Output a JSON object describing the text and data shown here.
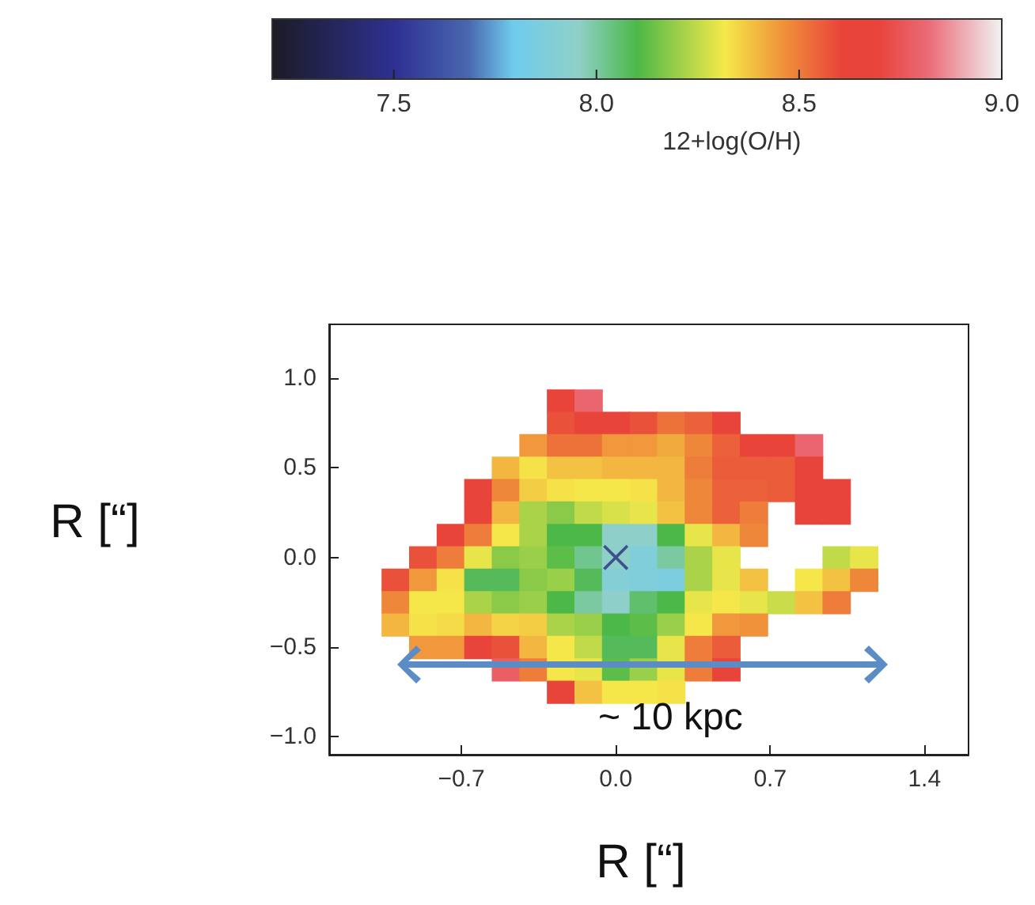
{
  "chart_data": {
    "type": "heatmap",
    "xlabel": "R [“]",
    "ylabel": "R [“]",
    "clabel": "12+log(O/H)",
    "clim": [
      7.2,
      9.0
    ],
    "cticks": [
      7.5,
      {
        "value": 8,
        "label": "8.0"
      },
      8.5,
      {
        "value": 9,
        "label": "9.0"
      }
    ],
    "xlim": [
      -1.3,
      1.6
    ],
    "ylim": [
      -1.1,
      1.3
    ],
    "xticks": [
      {
        "value": -0.7,
        "label": "−0.7"
      },
      {
        "value": 0,
        "label": "0.0"
      },
      0.7,
      1.4
    ],
    "yticks": [
      {
        "value": -1,
        "label": "−1.0"
      },
      {
        "value": -0.5,
        "label": "−0.5"
      },
      {
        "value": 0,
        "label": "0.0"
      },
      0.5,
      {
        "value": 1,
        "label": "1.0"
      }
    ],
    "x": [
      -1.0,
      -0.875,
      -0.75,
      -0.625,
      -0.5,
      -0.375,
      -0.25,
      -0.125,
      0.0,
      0.125,
      0.25,
      0.375,
      0.5,
      0.625,
      0.75,
      0.875,
      1.0,
      1.125
    ],
    "y": [
      0.875,
      0.75,
      0.625,
      0.5,
      0.375,
      0.25,
      0.125,
      0.0,
      -0.125,
      -0.25,
      -0.375,
      -0.5,
      -0.625,
      -0.75
    ],
    "cells": [
      [
        null,
        null,
        null,
        null,
        null,
        null,
        8.65,
        8.8,
        null,
        null,
        null,
        null,
        null,
        null,
        null,
        null,
        null,
        null
      ],
      [
        null,
        null,
        null,
        null,
        null,
        null,
        8.58,
        8.65,
        8.65,
        8.58,
        8.52,
        8.55,
        8.65,
        null,
        null,
        null,
        null,
        null
      ],
      [
        null,
        null,
        null,
        null,
        null,
        8.45,
        8.52,
        8.52,
        8.45,
        8.45,
        8.42,
        8.48,
        8.55,
        8.65,
        8.65,
        8.8,
        null,
        null
      ],
      [
        null,
        null,
        null,
        null,
        8.4,
        8.33,
        8.38,
        8.38,
        8.4,
        8.4,
        8.4,
        8.5,
        8.56,
        8.56,
        8.56,
        8.62,
        null,
        null
      ],
      [
        null,
        null,
        null,
        8.65,
        8.48,
        8.36,
        8.33,
        8.32,
        8.32,
        8.33,
        8.4,
        8.48,
        8.55,
        8.55,
        8.56,
        8.62,
        8.65,
        null
      ],
      [
        null,
        null,
        null,
        8.65,
        8.4,
        8.22,
        8.18,
        8.25,
        8.28,
        8.3,
        8.38,
        8.48,
        8.55,
        8.5,
        null,
        8.65,
        8.65,
        null
      ],
      [
        null,
        null,
        8.65,
        8.5,
        8.32,
        8.22,
        8.1,
        8.1,
        7.95,
        7.95,
        8.1,
        8.3,
        8.4,
        8.48,
        null,
        null,
        null,
        null
      ],
      [
        null,
        8.58,
        8.5,
        8.3,
        8.18,
        8.2,
        8.12,
        8.02,
        7.95,
        7.88,
        8.0,
        8.22,
        8.3,
        null,
        null,
        null,
        8.25,
        8.3
      ],
      [
        8.58,
        8.45,
        8.33,
        8.08,
        8.08,
        8.18,
        8.2,
        8.08,
        7.9,
        7.88,
        7.86,
        8.22,
        8.3,
        8.38,
        null,
        8.32,
        8.38,
        8.48
      ],
      [
        8.48,
        8.32,
        8.32,
        8.22,
        8.18,
        8.2,
        8.1,
        8.0,
        7.95,
        8.06,
        8.1,
        8.3,
        8.32,
        8.3,
        8.26,
        8.38,
        8.5,
        null
      ],
      [
        8.4,
        8.33,
        8.34,
        8.4,
        8.35,
        8.36,
        8.22,
        8.2,
        8.1,
        8.12,
        8.2,
        8.32,
        8.45,
        8.46,
        null,
        null,
        null,
        null
      ],
      [
        null,
        8.45,
        8.45,
        8.65,
        8.58,
        8.4,
        8.32,
        8.25,
        8.08,
        8.08,
        8.3,
        8.5,
        8.56,
        null,
        null,
        null,
        null,
        null
      ],
      [
        null,
        null,
        null,
        null,
        8.78,
        8.5,
        8.32,
        8.3,
        8.12,
        8.2,
        8.3,
        8.5,
        8.65,
        null,
        null,
        null,
        null,
        null
      ],
      [
        null,
        null,
        null,
        null,
        null,
        null,
        8.65,
        8.38,
        8.32,
        8.32,
        8.33,
        null,
        null,
        null,
        null,
        null,
        null,
        null
      ]
    ],
    "series": [
      {
        "type": "scatter",
        "marker": "cross",
        "x": [
          0
        ],
        "values": [
          0
        ],
        "color": "#2b2f80"
      }
    ],
    "annotations": [
      "~ 10 kpc"
    ]
  }
}
